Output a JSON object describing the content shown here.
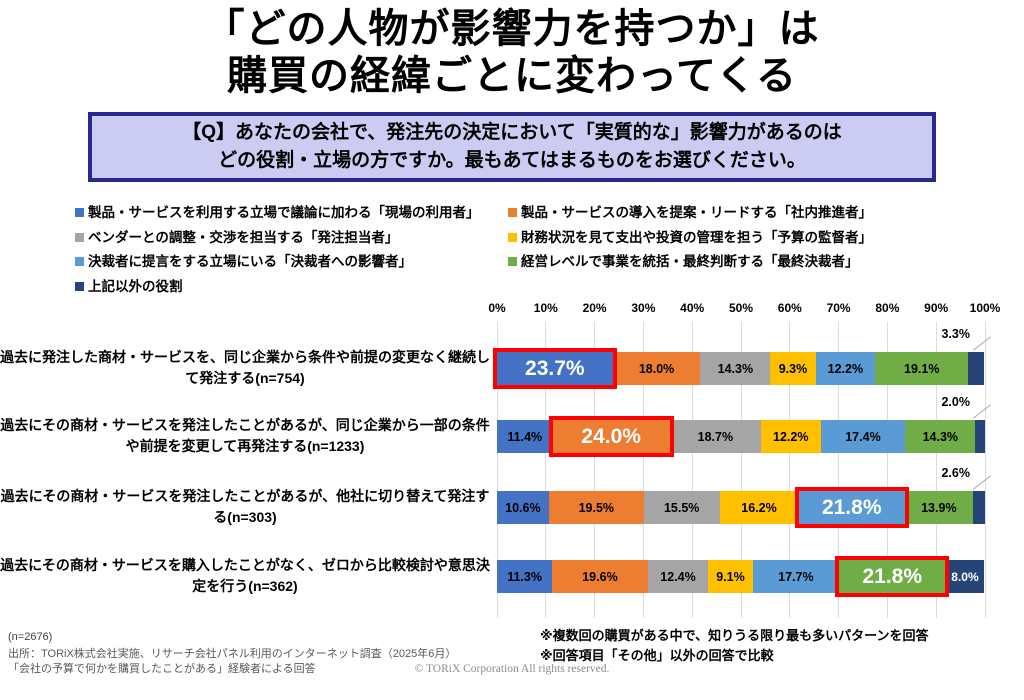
{
  "title": {
    "line1": "「どの人物が影響力を持つか」は",
    "line2": "購買の経緯ごとに変わってくる"
  },
  "question": {
    "line1": "【Q】あなたの会社で、発注先の決定において「実質的な」影響力があるのは",
    "line2": "どの役割・立場の方ですか。最もあてはまるものをお選びください。"
  },
  "chart_data": {
    "type": "stacked-bar-horizontal",
    "unit": "%",
    "xlim": [
      0,
      100
    ],
    "grid": true,
    "x_ticks": [
      "0%",
      "10%",
      "20%",
      "30%",
      "40%",
      "50%",
      "60%",
      "70%",
      "80%",
      "90%",
      "100%"
    ],
    "series": [
      {
        "name": "製品・サービスを利用する立場で議論に加わる「現場の利用者」",
        "color": "#4472c4"
      },
      {
        "name": "製品・サービスの導入を提案・リードする「社内推進者」",
        "color": "#ed7d31"
      },
      {
        "name": "ベンダーとの調整・交渉を担当する「発注担当者」",
        "color": "#a5a5a5"
      },
      {
        "name": "財務状況を見て支出や投資の管理を担う「予算の監督者」",
        "color": "#ffc000"
      },
      {
        "name": "決裁者に提言をする立場にいる「決裁者への影響者」",
        "color": "#5b9bd5"
      },
      {
        "name": "経営レベルで事業を統括・最終判断する「最終決裁者」",
        "color": "#70ad47"
      },
      {
        "name": "上記以外の役割",
        "color": "#264478"
      }
    ],
    "rows": [
      {
        "label": "過去に発注した商材・サービスを、同じ企業から条件や前提の変更なく継続して発注する(n=754)",
        "n": 754,
        "values": [
          23.7,
          18.0,
          14.3,
          9.3,
          12.2,
          19.1,
          3.3
        ],
        "highlight_series": 0,
        "last_label_above": true
      },
      {
        "label": "過去にその商材・サービスを発注したことがあるが、同じ企業から一部の条件や前提を変更して再発注する(n=1233)",
        "n": 1233,
        "values": [
          11.4,
          24.0,
          18.7,
          12.2,
          17.4,
          14.3,
          2.0
        ],
        "highlight_series": 1,
        "last_label_above": true
      },
      {
        "label": "過去にその商材・サービスを発注したことがあるが、他社に切り替えて発注する(n=303)",
        "n": 303,
        "values": [
          10.6,
          19.5,
          15.5,
          16.2,
          21.8,
          13.9,
          2.6
        ],
        "highlight_series": 4,
        "last_label_above": true
      },
      {
        "label": "過去にその商材・サービスを購入したことがなく、ゼロから比較検討や意思決定を行う(n=362)",
        "n": 362,
        "values": [
          11.3,
          19.6,
          12.4,
          9.1,
          17.7,
          21.8,
          8.0
        ],
        "highlight_series": 5,
        "last_label_above": false
      }
    ],
    "highlight_color": "#fe0000"
  },
  "footnotes": {
    "n_total": "(n=2676)",
    "source_line1": "出所：TORiX株式会社実施、リサーチ会社パネル利用のインターネット調査（2025年6月）",
    "source_line2": "「会社の予算で何かを購買したことがある」経験者による回答",
    "note1": "※複数回の購買がある中で、知りうる限り最も多いパターンを回答",
    "note2": "※回答項目「その他」以外の回答で比較"
  },
  "copyright": "© TORiX Corporation All rights reserved."
}
